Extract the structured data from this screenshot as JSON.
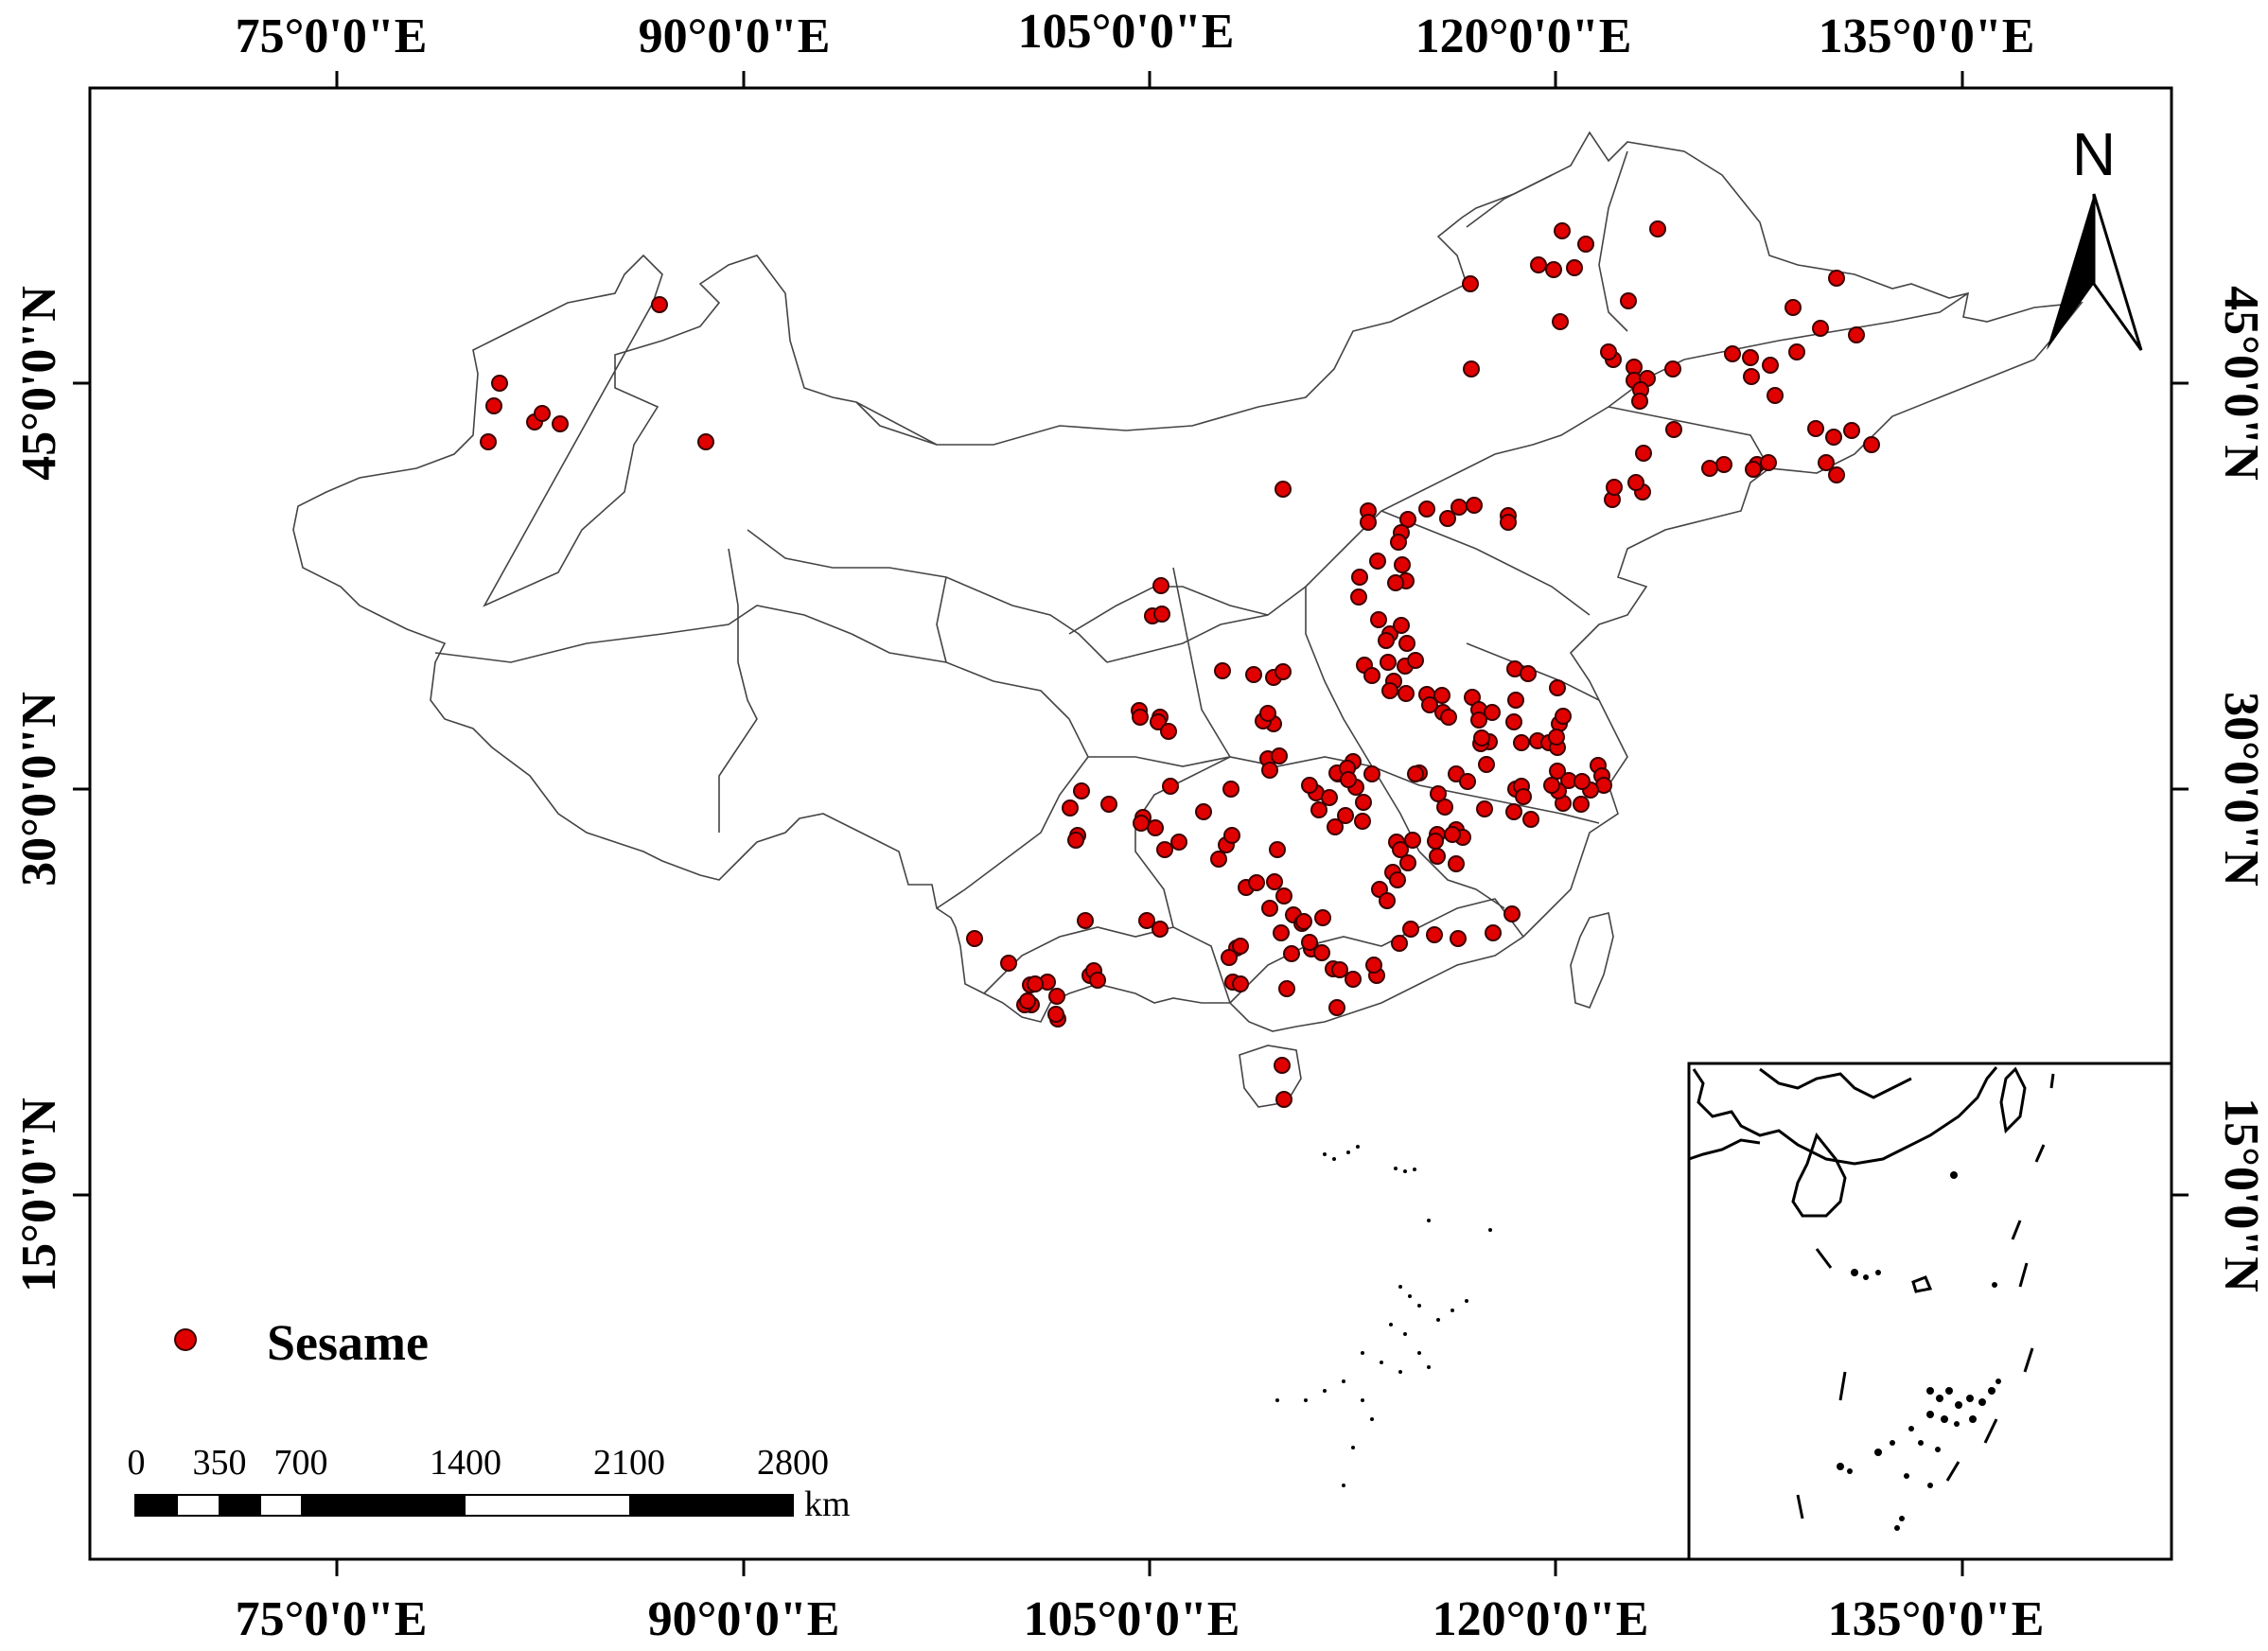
{
  "map": {
    "lon_labels": [
      "75°0'0\"E",
      "90°0'0\"E",
      "105°0'0\"E",
      "120°0'0\"E",
      "135°0'0\"E"
    ],
    "lat_labels": [
      "45°0'0\"N",
      "30°0'0\"N",
      "15°0'0\"N"
    ],
    "north_arrow_label": "N",
    "legend": {
      "label": "Sesame",
      "color": "#e00000"
    },
    "scale_bar": {
      "ticks": [
        "0",
        "350",
        "700",
        "1400",
        "2100",
        "2800"
      ],
      "unit": "km"
    },
    "colors": {
      "point_fill": "#e00000",
      "point_stroke": "#3a0000",
      "boundary": "#444444"
    }
  }
}
